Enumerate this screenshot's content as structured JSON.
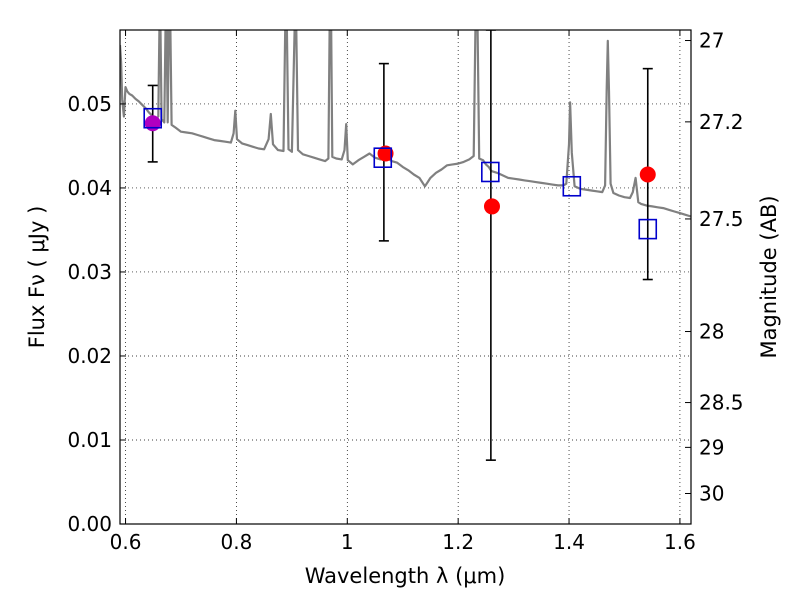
{
  "chart_data": {
    "type": "scatter",
    "xlabel": "Wavelength  λ (μm)",
    "ylabel": "Flux  Fν  ( μJy )",
    "ylabel_right": "Magnitude (AB)",
    "xlim": [
      0.59,
      1.62
    ],
    "ylim": [
      0.0,
      0.0588
    ],
    "grid": true,
    "x_ticks": [
      0.6,
      0.8,
      1.0,
      1.2,
      1.4,
      1.6
    ],
    "x_tick_labels": [
      "0.6",
      "0.8",
      "1",
      "1.2",
      "1.4",
      "1.6"
    ],
    "y_ticks": [
      0.0,
      0.01,
      0.02,
      0.03,
      0.04,
      0.05
    ],
    "y_tick_labels": [
      "0.00",
      "0.01",
      "0.02",
      "0.03",
      "0.04",
      "0.05"
    ],
    "right_ticks": [
      27,
      27.2,
      27.5,
      28,
      28.5,
      29,
      30
    ],
    "right_tick_labels": [
      "27",
      "27.2",
      "27.5",
      "28",
      "28.5",
      "29",
      "30"
    ],
    "colors": {
      "model": "#808080",
      "observed": "#ff0000",
      "model_photometry": "#0000cc",
      "first_point": "#b000c0",
      "errorbar": "#000000"
    },
    "model_spectrum": [
      [
        0.59,
        0.057
      ],
      [
        0.592,
        0.055
      ],
      [
        0.594,
        0.0505
      ],
      [
        0.597,
        0.0485
      ],
      [
        0.6,
        0.052
      ],
      [
        0.603,
        0.0515
      ],
      [
        0.607,
        0.0512
      ],
      [
        0.612,
        0.051
      ],
      [
        0.618,
        0.0506
      ],
      [
        0.624,
        0.0503
      ],
      [
        0.63,
        0.0499
      ],
      [
        0.636,
        0.0495
      ],
      [
        0.642,
        0.049
      ],
      [
        0.648,
        0.0486
      ],
      [
        0.654,
        0.0482
      ],
      [
        0.659,
        0.0485
      ],
      [
        0.661,
        0.0588
      ],
      [
        0.663,
        0.0588
      ],
      [
        0.665,
        0.0482
      ],
      [
        0.67,
        0.0478
      ],
      [
        0.672,
        0.0588
      ],
      [
        0.674,
        0.0588
      ],
      [
        0.676,
        0.0478
      ],
      [
        0.678,
        0.0588
      ],
      [
        0.681,
        0.0588
      ],
      [
        0.683,
        0.0475
      ],
      [
        0.69,
        0.0472
      ],
      [
        0.7,
        0.0467
      ],
      [
        0.71,
        0.0466
      ],
      [
        0.72,
        0.0465
      ],
      [
        0.73,
        0.0463
      ],
      [
        0.74,
        0.0461
      ],
      [
        0.75,
        0.0459
      ],
      [
        0.76,
        0.0457
      ],
      [
        0.77,
        0.0456
      ],
      [
        0.78,
        0.0455
      ],
      [
        0.79,
        0.0454
      ],
      [
        0.795,
        0.0465
      ],
      [
        0.798,
        0.0492
      ],
      [
        0.801,
        0.0458
      ],
      [
        0.81,
        0.0453
      ],
      [
        0.82,
        0.0451
      ],
      [
        0.83,
        0.0449
      ],
      [
        0.84,
        0.0447
      ],
      [
        0.85,
        0.0446
      ],
      [
        0.858,
        0.0458
      ],
      [
        0.862,
        0.0488
      ],
      [
        0.866,
        0.0452
      ],
      [
        0.875,
        0.0445
      ],
      [
        0.885,
        0.0444
      ],
      [
        0.888,
        0.0588
      ],
      [
        0.891,
        0.0588
      ],
      [
        0.894,
        0.0446
      ],
      [
        0.9,
        0.0443
      ],
      [
        0.905,
        0.0588
      ],
      [
        0.908,
        0.0588
      ],
      [
        0.911,
        0.0445
      ],
      [
        0.92,
        0.044
      ],
      [
        0.93,
        0.0438
      ],
      [
        0.94,
        0.0436
      ],
      [
        0.95,
        0.0434
      ],
      [
        0.96,
        0.0432
      ],
      [
        0.966,
        0.0435
      ],
      [
        0.968,
        0.0588
      ],
      [
        0.971,
        0.0588
      ],
      [
        0.973,
        0.0437
      ],
      [
        0.98,
        0.0435
      ],
      [
        0.99,
        0.0434
      ],
      [
        0.995,
        0.0445
      ],
      [
        0.998,
        0.0476
      ],
      [
        1.001,
        0.0433
      ],
      [
        1.01,
        0.0428
      ],
      [
        1.02,
        0.0433
      ],
      [
        1.03,
        0.0437
      ],
      [
        1.04,
        0.0441
      ],
      [
        1.05,
        0.0436
      ],
      [
        1.06,
        0.0434
      ],
      [
        1.07,
        0.0437
      ],
      [
        1.08,
        0.0432
      ],
      [
        1.09,
        0.043
      ],
      [
        1.1,
        0.0425
      ],
      [
        1.11,
        0.0421
      ],
      [
        1.12,
        0.0416
      ],
      [
        1.13,
        0.0412
      ],
      [
        1.14,
        0.0402
      ],
      [
        1.145,
        0.0407
      ],
      [
        1.15,
        0.0412
      ],
      [
        1.16,
        0.0418
      ],
      [
        1.17,
        0.0422
      ],
      [
        1.18,
        0.0427
      ],
      [
        1.19,
        0.0428
      ],
      [
        1.2,
        0.0429
      ],
      [
        1.21,
        0.0431
      ],
      [
        1.22,
        0.0434
      ],
      [
        1.228,
        0.0438
      ],
      [
        1.231,
        0.0588
      ],
      [
        1.235,
        0.0588
      ],
      [
        1.238,
        0.0435
      ],
      [
        1.245,
        0.0433
      ],
      [
        1.25,
        0.0428
      ],
      [
        1.255,
        0.0425
      ],
      [
        1.26,
        0.042
      ],
      [
        1.27,
        0.0418
      ],
      [
        1.28,
        0.0415
      ],
      [
        1.29,
        0.0412
      ],
      [
        1.3,
        0.0411
      ],
      [
        1.31,
        0.041
      ],
      [
        1.32,
        0.0409
      ],
      [
        1.33,
        0.0408
      ],
      [
        1.34,
        0.0407
      ],
      [
        1.35,
        0.0406
      ],
      [
        1.36,
        0.0405
      ],
      [
        1.37,
        0.0404
      ],
      [
        1.38,
        0.0403
      ],
      [
        1.39,
        0.0403
      ],
      [
        1.395,
        0.0405
      ],
      [
        1.4,
        0.0452
      ],
      [
        1.402,
        0.0502
      ],
      [
        1.405,
        0.0442
      ],
      [
        1.41,
        0.0402
      ],
      [
        1.42,
        0.0399
      ],
      [
        1.43,
        0.0398
      ],
      [
        1.44,
        0.0397
      ],
      [
        1.45,
        0.0396
      ],
      [
        1.46,
        0.0395
      ],
      [
        1.465,
        0.0403
      ],
      [
        1.468,
        0.0518
      ],
      [
        1.47,
        0.0575
      ],
      [
        1.472,
        0.0515
      ],
      [
        1.475,
        0.0405
      ],
      [
        1.48,
        0.0394
      ],
      [
        1.49,
        0.0391
      ],
      [
        1.5,
        0.0389
      ],
      [
        1.51,
        0.0388
      ],
      [
        1.515,
        0.0395
      ],
      [
        1.52,
        0.0412
      ],
      [
        1.525,
        0.0383
      ],
      [
        1.53,
        0.0381
      ],
      [
        1.54,
        0.0379
      ],
      [
        1.55,
        0.0378
      ],
      [
        1.56,
        0.0377
      ],
      [
        1.57,
        0.0376
      ],
      [
        1.58,
        0.0374
      ],
      [
        1.59,
        0.0372
      ],
      [
        1.6,
        0.037
      ],
      [
        1.61,
        0.0368
      ],
      [
        1.62,
        0.0366
      ]
    ],
    "observed": [
      {
        "x": 0.649,
        "y": 0.0477
      },
      {
        "x": 1.069,
        "y": 0.0441
      },
      {
        "x": 1.261,
        "y": 0.0378
      },
      {
        "x": 1.542,
        "y": 0.0416
      }
    ],
    "model_photometry": [
      {
        "x": 0.649,
        "y": 0.0483
      },
      {
        "x": 1.064,
        "y": 0.0436
      },
      {
        "x": 1.258,
        "y": 0.0419
      },
      {
        "x": 1.405,
        "y": 0.0402
      },
      {
        "x": 1.542,
        "y": 0.0351
      }
    ],
    "errorbars": [
      {
        "x": 0.649,
        "low": 0.0431,
        "high": 0.0522
      },
      {
        "x": 1.066,
        "low": 0.0337,
        "high": 0.0548
      },
      {
        "x": 1.259,
        "low": 0.0076,
        "high": 0.0588
      },
      {
        "x": 1.542,
        "low": 0.0291,
        "high": 0.0542
      }
    ]
  }
}
